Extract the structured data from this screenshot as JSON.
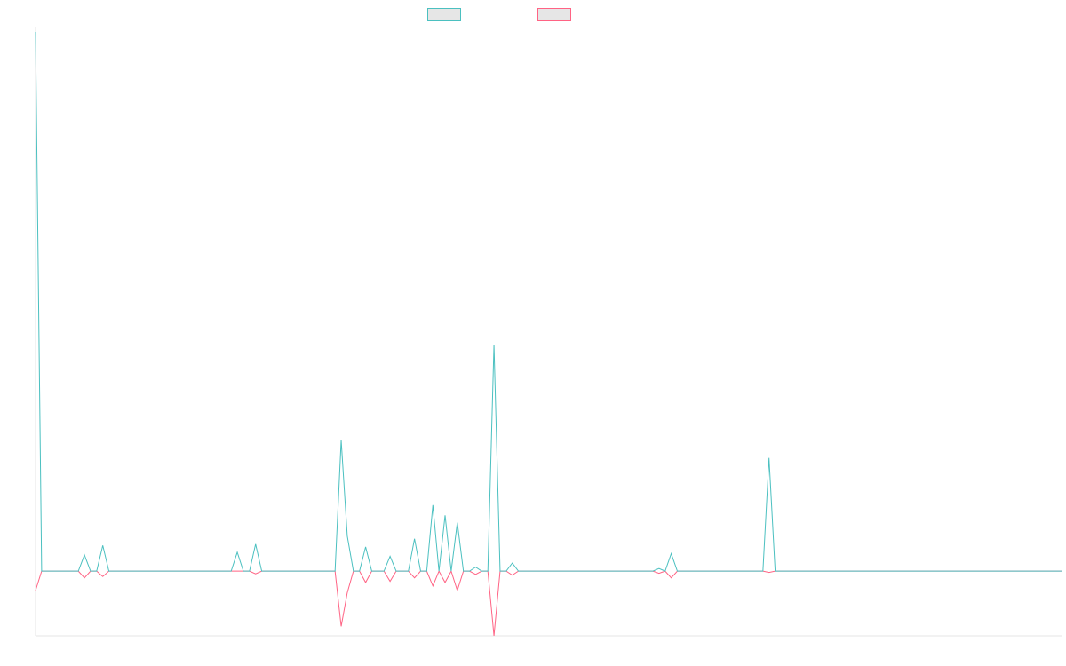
{
  "chart_data": {
    "type": "line",
    "title": "",
    "xlabel": "",
    "ylabel": "",
    "grid": false,
    "legend_position": "top-center",
    "ylim": [
      -2.4,
      20
    ],
    "n_points": 169,
    "series": [
      {
        "color": "#4bc0c0",
        "points": [
          [
            0,
            20.0
          ],
          [
            1,
            0.0
          ],
          [
            7,
            0.0
          ],
          [
            8,
            0.6
          ],
          [
            9,
            0.0
          ],
          [
            10,
            0.0
          ],
          [
            11,
            0.95
          ],
          [
            12,
            0.0
          ],
          [
            32,
            0.0
          ],
          [
            33,
            0.7
          ],
          [
            34,
            0.0
          ],
          [
            35,
            0.0
          ],
          [
            36,
            1.0
          ],
          [
            37,
            0.0
          ],
          [
            49,
            0.0
          ],
          [
            50,
            4.85
          ],
          [
            51,
            1.3
          ],
          [
            52,
            0.0
          ],
          [
            53,
            0.0
          ],
          [
            54,
            0.9
          ],
          [
            55,
            0.0
          ],
          [
            57,
            0.0
          ],
          [
            58,
            0.55
          ],
          [
            59,
            0.0
          ],
          [
            61,
            0.0
          ],
          [
            62,
            1.2
          ],
          [
            63,
            0.0
          ],
          [
            64,
            0.0
          ],
          [
            65,
            2.45
          ],
          [
            66,
            0.0
          ],
          [
            67,
            2.07
          ],
          [
            68,
            0.0
          ],
          [
            69,
            1.8
          ],
          [
            70,
            0.0
          ],
          [
            71,
            0.0
          ],
          [
            72,
            0.15
          ],
          [
            73,
            0.0
          ],
          [
            74,
            0.0
          ],
          [
            75,
            8.4
          ],
          [
            76,
            0.0
          ],
          [
            77,
            0.0
          ],
          [
            78,
            0.3
          ],
          [
            79,
            0.0
          ],
          [
            101,
            0.0
          ],
          [
            102,
            0.1
          ],
          [
            103,
            0.0
          ],
          [
            104,
            0.65
          ],
          [
            105,
            0.0
          ],
          [
            119,
            0.0
          ],
          [
            120,
            4.2
          ],
          [
            121,
            0.0
          ],
          [
            168,
            0.0
          ]
        ]
      },
      {
        "color": "#ff6384",
        "points": [
          [
            0,
            -0.72
          ],
          [
            1,
            0.0
          ],
          [
            7,
            0.0
          ],
          [
            8,
            -0.25
          ],
          [
            9,
            0.0
          ],
          [
            10,
            0.0
          ],
          [
            11,
            -0.2
          ],
          [
            12,
            0.0
          ],
          [
            35,
            0.0
          ],
          [
            36,
            -0.1
          ],
          [
            37,
            0.0
          ],
          [
            49,
            0.0
          ],
          [
            50,
            -2.05
          ],
          [
            51,
            -0.8
          ],
          [
            52,
            0.0
          ],
          [
            53,
            0.0
          ],
          [
            54,
            -0.42
          ],
          [
            55,
            0.0
          ],
          [
            57,
            0.0
          ],
          [
            58,
            -0.38
          ],
          [
            59,
            0.0
          ],
          [
            61,
            0.0
          ],
          [
            62,
            -0.25
          ],
          [
            63,
            0.0
          ],
          [
            64,
            0.0
          ],
          [
            65,
            -0.55
          ],
          [
            66,
            0.0
          ],
          [
            67,
            -0.42
          ],
          [
            68,
            0.0
          ],
          [
            69,
            -0.72
          ],
          [
            70,
            0.0
          ],
          [
            71,
            0.0
          ],
          [
            72,
            -0.12
          ],
          [
            73,
            0.0
          ],
          [
            74,
            0.0
          ],
          [
            75,
            -2.4
          ],
          [
            76,
            0.0
          ],
          [
            77,
            0.0
          ],
          [
            78,
            -0.15
          ],
          [
            79,
            0.0
          ],
          [
            101,
            0.0
          ],
          [
            102,
            -0.08
          ],
          [
            103,
            0.0
          ],
          [
            104,
            -0.25
          ],
          [
            105,
            0.0
          ],
          [
            119,
            0.0
          ],
          [
            120,
            -0.05
          ],
          [
            121,
            0.0
          ],
          [
            168,
            0.0
          ]
        ]
      }
    ]
  }
}
